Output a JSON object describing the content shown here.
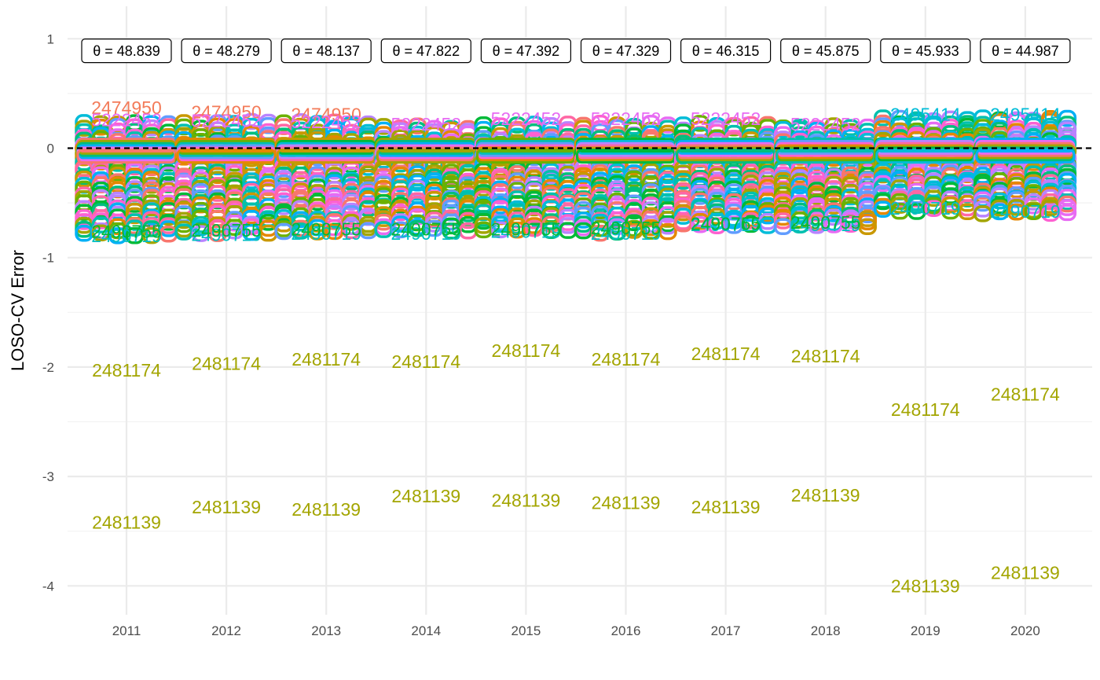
{
  "chart_data": {
    "type": "scatter",
    "title": "",
    "xlabel": "",
    "ylabel": "LOSO-CV Error",
    "categories": [
      "2011",
      "2012",
      "2013",
      "2014",
      "2015",
      "2016",
      "2017",
      "2018",
      "2019",
      "2020"
    ],
    "yticks": [
      "1",
      "0",
      "-1",
      "-2",
      "-3",
      "-4"
    ],
    "ylim": [
      -4.25,
      1.1
    ],
    "grid": true,
    "reference_line": 0,
    "theta_labels": [
      "θ = 48.839",
      "θ = 48.279",
      "θ = 48.137",
      "θ = 47.822",
      "θ = 47.392",
      "θ = 47.329",
      "θ = 46.315",
      "θ = 45.875",
      "θ = 45.933",
      "θ = 44.987"
    ],
    "cluster_colors": [
      "#F8766D",
      "#E58700",
      "#C99800",
      "#A3A500",
      "#6BB100",
      "#00BA38",
      "#00BF7D",
      "#00C0AF",
      "#00BCD8",
      "#00B0F6",
      "#619CFF",
      "#B983FF",
      "#E76BF3",
      "#FD61D1",
      "#FF67A4"
    ],
    "highlighted_points": [
      {
        "station": "2481174",
        "color": "#A3A500",
        "values": [
          -2.03,
          -1.97,
          -1.93,
          -1.95,
          -1.85,
          -1.93,
          -1.88,
          -1.9,
          -2.39,
          -2.25
        ]
      },
      {
        "station": "2481139",
        "color": "#A3A500",
        "values": [
          -3.42,
          -3.28,
          -3.3,
          -3.18,
          -3.22,
          -3.24,
          -3.28,
          -3.17,
          -4.0,
          -3.88
        ]
      },
      {
        "station": "2474950",
        "color": "#F37B59",
        "values": [
          0.37,
          0.33,
          0.31,
          null,
          null,
          null,
          null,
          null,
          null,
          null
        ]
      },
      {
        "station": "5222452",
        "color": "#E76BF3",
        "values": [
          0.26,
          0.25,
          0.24,
          0.22,
          0.27,
          0.27,
          0.27,
          0.22,
          null,
          null
        ]
      },
      {
        "station": "2495414",
        "color": "#00BCD8",
        "values": [
          null,
          null,
          null,
          null,
          null,
          null,
          null,
          null,
          0.31,
          0.31
        ]
      },
      {
        "station": "2490719",
        "color": "#00BFC4",
        "values": [
          -0.8,
          -0.79,
          -0.78,
          -0.78,
          -0.76,
          -0.78,
          -0.7,
          -0.7,
          -0.55,
          -0.58
        ]
      },
      {
        "station": "2490755",
        "color": "#00BA38",
        "values": [
          -0.76,
          -0.75,
          -0.74,
          -0.74,
          -0.74,
          -0.73,
          -0.69,
          -0.68,
          null,
          null
        ]
      }
    ],
    "cluster_range": {
      "top": [
        0.22,
        0.22,
        0.22,
        0.18,
        0.2,
        0.2,
        0.2,
        0.18,
        0.25,
        0.25
      ],
      "bottom": [
        -0.8,
        -0.78,
        -0.78,
        -0.76,
        -0.76,
        -0.78,
        -0.72,
        -0.72,
        -0.58,
        -0.6
      ]
    }
  }
}
